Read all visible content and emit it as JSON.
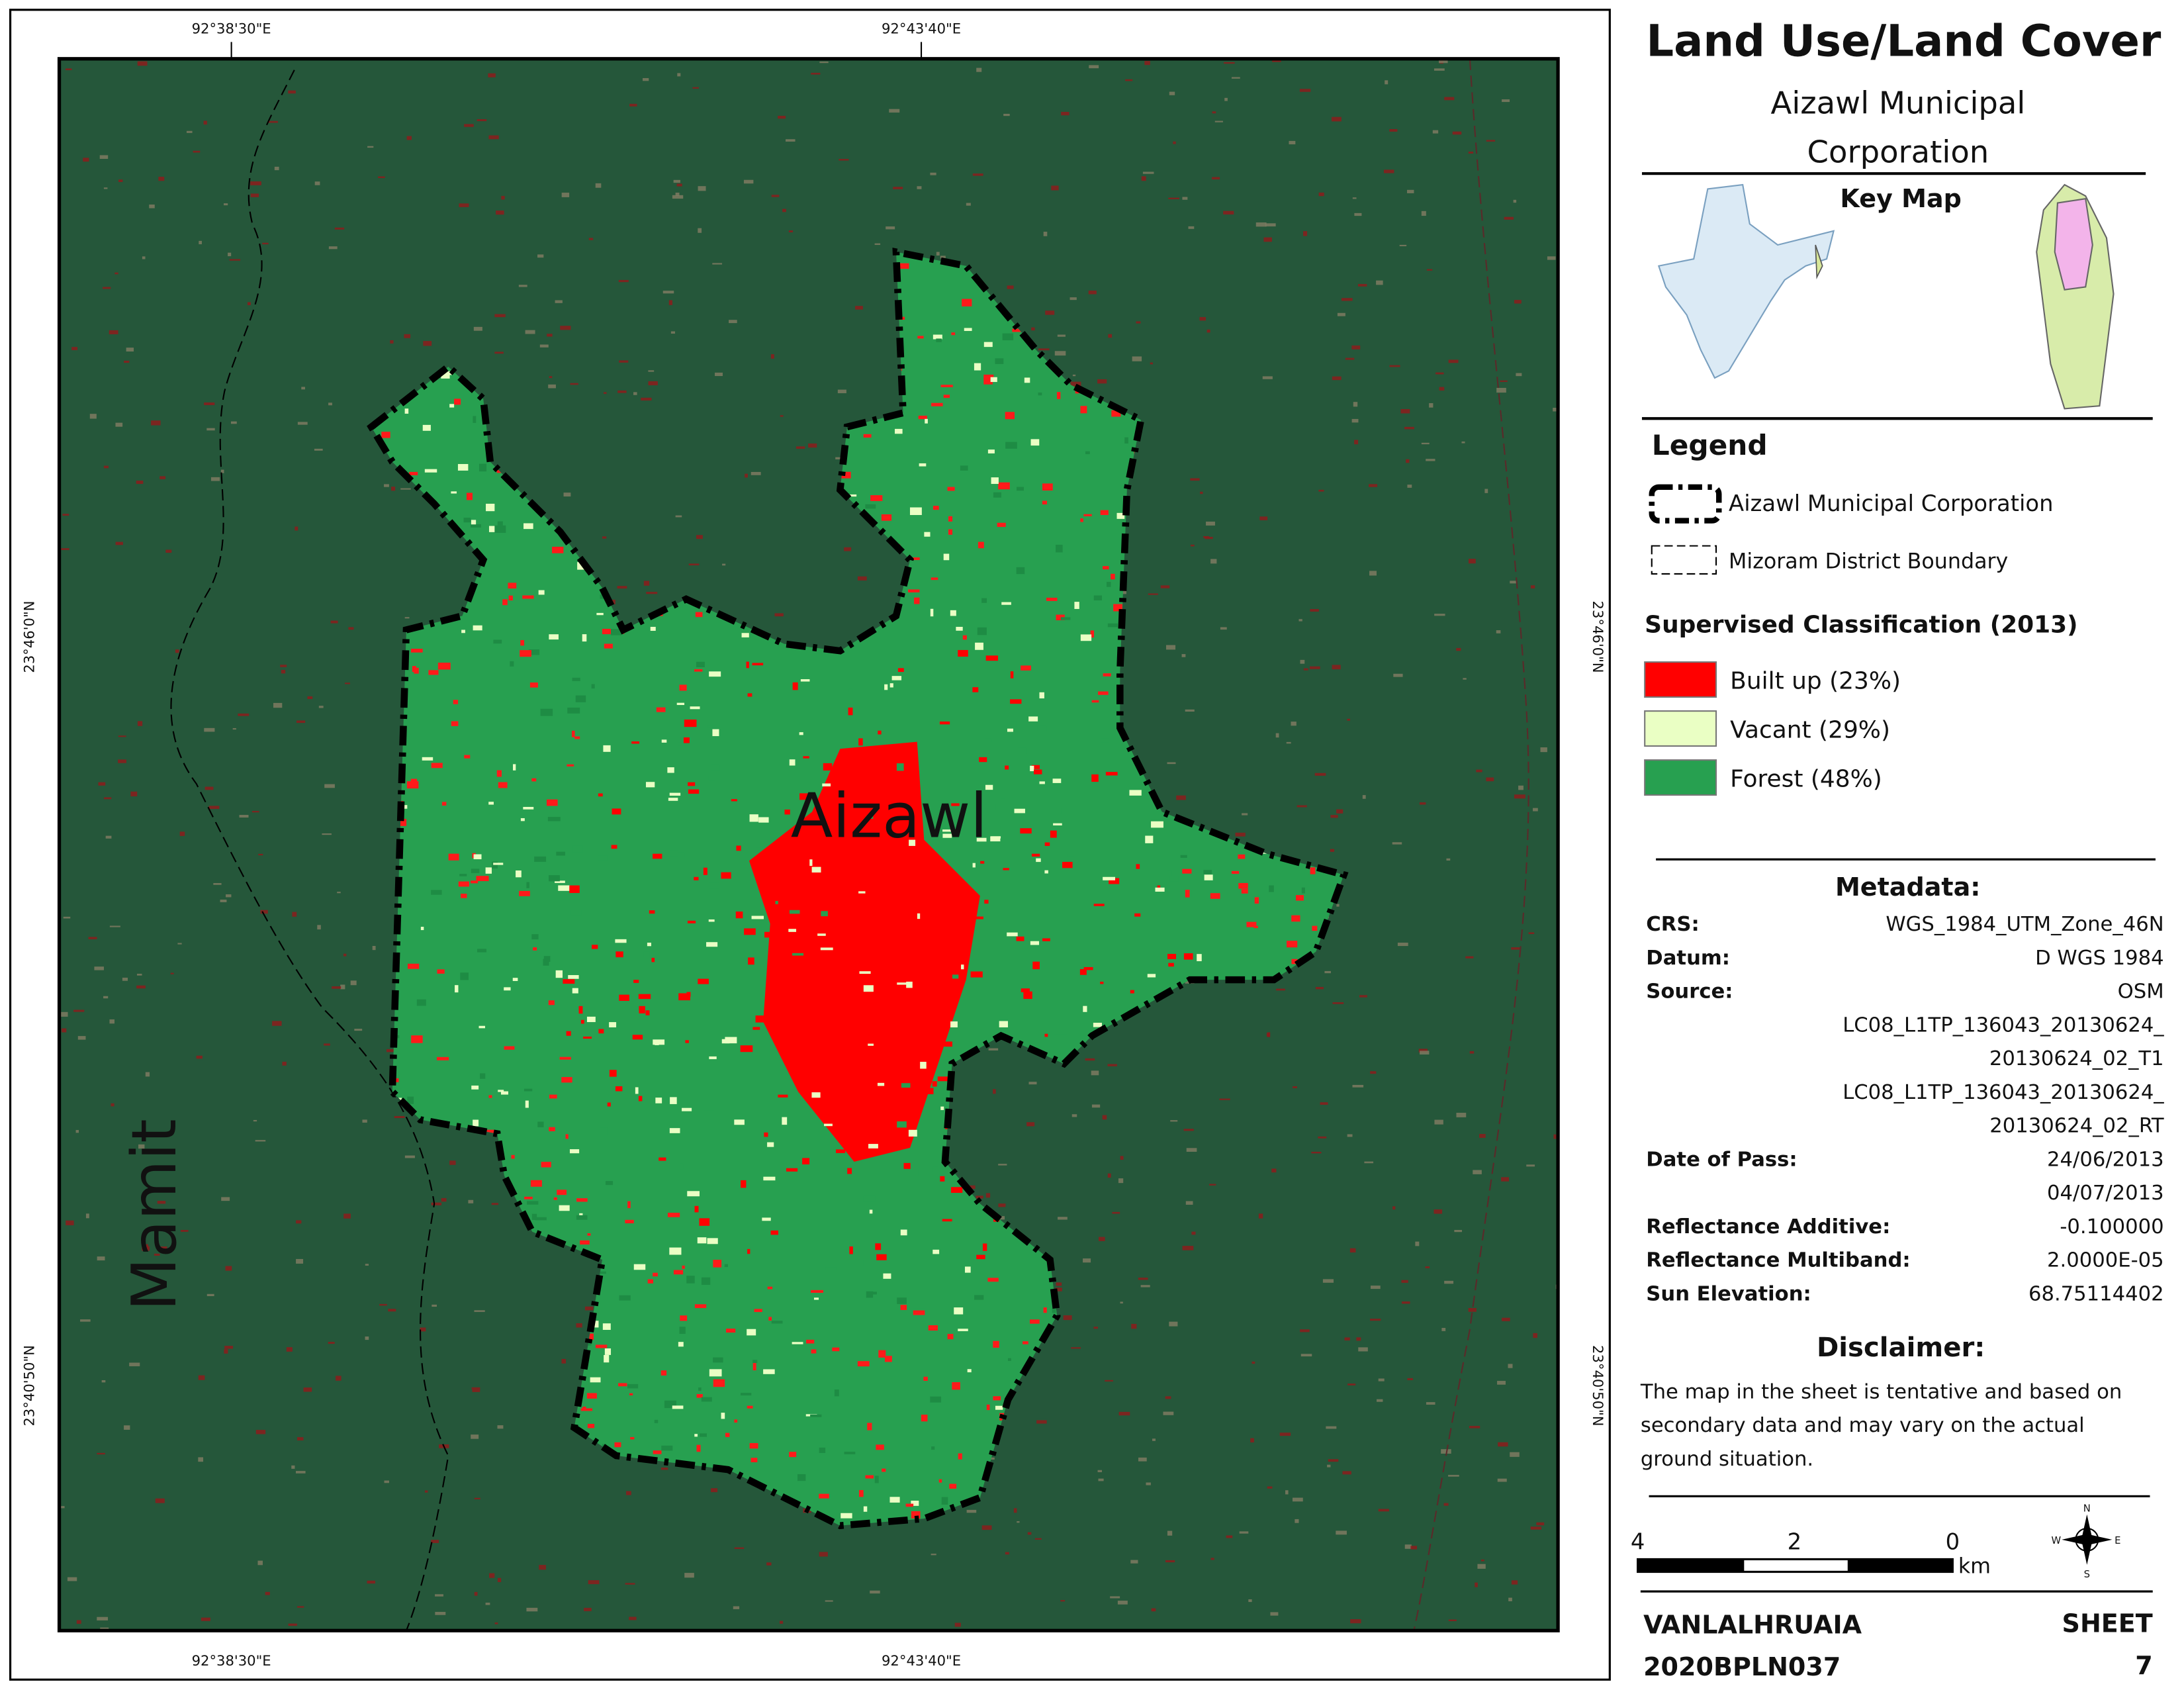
{
  "map": {
    "top_coords": [
      "92°38'30\"E",
      "92°43'40\"E"
    ],
    "side_coords": [
      "23°46'0\"N",
      "23°40'50\"N"
    ],
    "places": [
      "Aizawl",
      "Mamit"
    ]
  },
  "panel": {
    "title": "Land Use/Land Cover",
    "subtitle_lines": [
      "Aizawl Municipal",
      "Corporation"
    ],
    "key_map": "Key Map",
    "legend": {
      "heading": "Legend",
      "items": [
        "Aizawl Municipal Corporation",
        "Mizoram District Boundary"
      ]
    },
    "classification": {
      "heading": "Supervised Classification (2013)",
      "classes": [
        {
          "label": "Built up (23%)",
          "color": "#ff0000"
        },
        {
          "label": "Vacant (29%)",
          "color": "#eaffc4"
        },
        {
          "label": "Forest (48%)",
          "color": "#27a050"
        }
      ]
    },
    "metadata": {
      "heading": "Metadata:",
      "rows": [
        {
          "label": "CRS:",
          "lines": [
            "WGS_1984_UTM_Zone_46N"
          ]
        },
        {
          "label": "Datum:",
          "lines": [
            "D WGS 1984"
          ]
        },
        {
          "label": "Source:",
          "lines": [
            "OSM",
            "LC08_L1TP_136043_20130624_",
            "20130624_02_T1",
            "LC08_L1TP_136043_20130624_",
            "20130624_02_RT"
          ]
        },
        {
          "label": "Date of Pass:",
          "lines": [
            "24/06/2013",
            "04/07/2013"
          ]
        },
        {
          "label": "Reflectance Additive:",
          "lines": [
            "-0.100000"
          ]
        },
        {
          "label": "Reflectance Multiband:",
          "lines": [
            "2.0000E-05"
          ]
        },
        {
          "label": "Sun Elevation:",
          "lines": [
            "68.75114402"
          ]
        }
      ]
    },
    "disclaimer": {
      "heading": "Disclaimer:",
      "lines": [
        "The map in the sheet is tentative and based on",
        "secondary data and may vary on the actual",
        "ground situation."
      ]
    },
    "scale": {
      "labels": [
        "4",
        "2",
        "0"
      ],
      "unit": "km"
    },
    "compass": [
      "N",
      "E",
      "S",
      "W"
    ],
    "footer": {
      "author": "VANLALHRUAIA",
      "roll": "2020BPLN037",
      "sheet_label": "SHEET",
      "sheet_number": "7"
    }
  }
}
